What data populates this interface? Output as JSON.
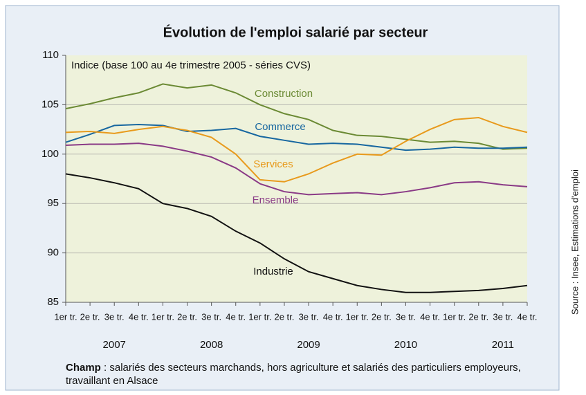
{
  "chart_data": {
    "type": "line",
    "title": "Évolution de l'emploi salarié par secteur",
    "subtitle": "Indice (base 100 au 4e trimestre 2005 - séries CVS)",
    "categories": [
      "1er tr.",
      "2e tr.",
      "3e tr.",
      "4e tr.",
      "1er tr.",
      "2e tr.",
      "3e tr.",
      "4e tr.",
      "1er tr.",
      "2e tr.",
      "3e tr.",
      "4e tr.",
      "1er tr.",
      "2e tr.",
      "3e tr.",
      "4e tr.",
      "1er tr.",
      "2e tr.",
      "3e tr.",
      "4e tr."
    ],
    "years": [
      "2007",
      "2008",
      "2009",
      "2010",
      "2011"
    ],
    "ylim": [
      85,
      110
    ],
    "yticks": [
      85,
      90,
      95,
      100,
      105,
      110
    ],
    "grid": true,
    "series": [
      {
        "name": "Construction",
        "color": "#6b8a34",
        "values": [
          104.6,
          105.1,
          105.7,
          106.2,
          107.1,
          106.7,
          107.0,
          106.2,
          105.0,
          104.1,
          103.5,
          102.4,
          101.9,
          101.8,
          101.5,
          101.2,
          101.3,
          101.1,
          100.5,
          100.6
        ]
      },
      {
        "name": "Commerce",
        "color": "#1767a0",
        "values": [
          101.2,
          102.0,
          102.9,
          103.0,
          102.9,
          102.3,
          102.4,
          102.6,
          101.8,
          101.4,
          101.0,
          101.1,
          101.0,
          100.7,
          100.4,
          100.5,
          100.7,
          100.6,
          100.6,
          100.7
        ]
      },
      {
        "name": "Services",
        "color": "#e89a1c",
        "values": [
          102.2,
          102.3,
          102.1,
          102.5,
          102.8,
          102.4,
          101.7,
          100.0,
          97.4,
          97.2,
          98.0,
          99.1,
          100.0,
          99.9,
          101.3,
          102.5,
          103.5,
          103.7,
          102.8,
          102.2
        ]
      },
      {
        "name": "Ensemble",
        "color": "#8a3a86",
        "values": [
          100.9,
          101.0,
          101.0,
          101.1,
          100.8,
          100.3,
          99.7,
          98.6,
          97.0,
          96.2,
          95.9,
          96.0,
          96.1,
          95.9,
          96.2,
          96.6,
          97.1,
          97.2,
          96.9,
          96.7
        ]
      },
      {
        "name": "Industrie",
        "color": "#111111",
        "values": [
          98.0,
          97.6,
          97.1,
          96.5,
          95.0,
          94.5,
          93.7,
          92.2,
          91.0,
          89.4,
          88.1,
          87.4,
          86.7,
          86.3,
          86.0,
          86.0,
          86.1,
          86.2,
          86.4,
          86.7
        ]
      }
    ],
    "note_bold": "Champ",
    "note": " : salariés des secteurs marchands, hors agriculture et salariés des particuliers employeurs, travaillant en Alsace",
    "source": "Source : Insee, Estimations d'emploi"
  }
}
